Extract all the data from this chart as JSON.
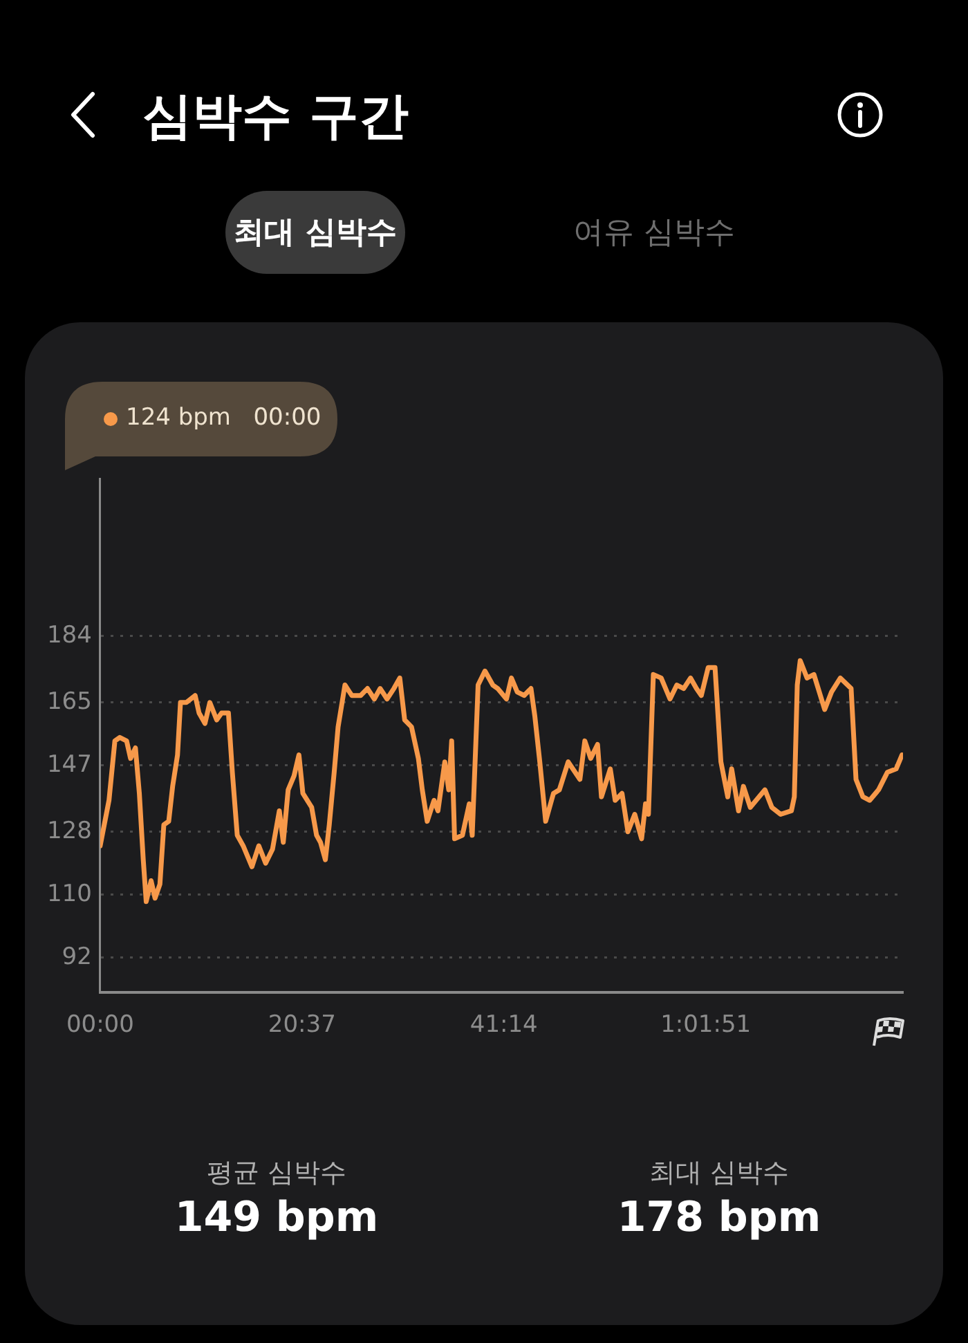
{
  "chart_data": {
    "type": "line",
    "title": "심박수 구간",
    "x": [
      0,
      0.9,
      1.5,
      2,
      2.7,
      3.1,
      3.6,
      4,
      4.4,
      4.7,
      5.2,
      5.6,
      6.1,
      6.5,
      7,
      7.4,
      7.9,
      8.2,
      8.8,
      9.7,
      10.1,
      10.7,
      11.2,
      11.9,
      12.4,
      13.1,
      13.5,
      14,
      14.6,
      15.5,
      16.2,
      16.9,
      17.6,
      18.3,
      18.7,
      19.2,
      19.8,
      20.3,
      20.7,
      21.6,
      22.1,
      22.5,
      23,
      23.4,
      23.9,
      24.3,
      25,
      25.7,
      26.6,
      27.3,
      28,
      28.6,
      29.3,
      30,
      30.6,
      31.1,
      31.8,
      32.5,
      32.9,
      33.4,
      34.1,
      34.5,
      35.2,
      35.6,
      35.9,
      36.2,
      37,
      37.7,
      38,
      38.6,
      39.3,
      40.1,
      40.6,
      41.5,
      42,
      42.6,
      43.3,
      44,
      44.4,
      44.9,
      45.5,
      46.3,
      46.9,
      47.8,
      49,
      49.5,
      50.1,
      50.8,
      51.2,
      52.1,
      52.6,
      53.3,
      53.9,
      54.6,
      55.3,
      55.7,
      56,
      56.5,
      57.3,
      58.2,
      58.9,
      59.6,
      60.3,
      60.9,
      61.4,
      62.1,
      62.8,
      63.4,
      64.1,
      64.5,
      65.2,
      65.7,
      66.4,
      67,
      67.9,
      68.6,
      69.5,
      70.6,
      70.9,
      71.2,
      71.5,
      72.2,
      72.9,
      74,
      74.7,
      75.6,
      76.7,
      77.2,
      77.9,
      78.6,
      79.5,
      80.4,
      81.3,
      81.9
    ],
    "series": [
      {
        "color": "#f7994a",
        "values": [
          124,
          137,
          154,
          155,
          154,
          149,
          152,
          139,
          120,
          108,
          114,
          109,
          113,
          130,
          131,
          141,
          150,
          165,
          165,
          167,
          162,
          159,
          165,
          160,
          162,
          162,
          145,
          127,
          124,
          118,
          124,
          119,
          123,
          134,
          125,
          140,
          144,
          150,
          139,
          135,
          127,
          125,
          120,
          130,
          145,
          158,
          170,
          167,
          167,
          169,
          166,
          169,
          166,
          169,
          172,
          160,
          158,
          149,
          140,
          131,
          137,
          134,
          148,
          140,
          154,
          126,
          127,
          136,
          127,
          170,
          174,
          170,
          169,
          166,
          172,
          168,
          167,
          169,
          161,
          148,
          131,
          139,
          140,
          148,
          143,
          154,
          149,
          153,
          138,
          146,
          137,
          139,
          128,
          133,
          126,
          136,
          133,
          173,
          172,
          166,
          170,
          169,
          172,
          169,
          167,
          175,
          175,
          148,
          138,
          146,
          134,
          141,
          135,
          137,
          140,
          135,
          133,
          134,
          138,
          170,
          177,
          172,
          173,
          163,
          168,
          172,
          169,
          143,
          138,
          137,
          140,
          145,
          146,
          150
        ]
      }
    ],
    "xlim": [
      0,
      82
    ],
    "xticks": [
      {
        "value": 0,
        "label": "00:00"
      },
      {
        "value": 20.617,
        "label": "20:37"
      },
      {
        "value": 41.233,
        "label": "41:14"
      },
      {
        "value": 61.85,
        "label": "1:01:51"
      }
    ],
    "ylim": [
      82,
      229
    ],
    "yticks": [
      92,
      110,
      128,
      147,
      165,
      184
    ],
    "grid": "y",
    "annotations": [
      "최대 심박수",
      "여유 심박수",
      "평균 심박수",
      "149 bpm",
      "최대 심박수",
      "178 bpm",
      "124 bpm   00:00"
    ]
  }
}
